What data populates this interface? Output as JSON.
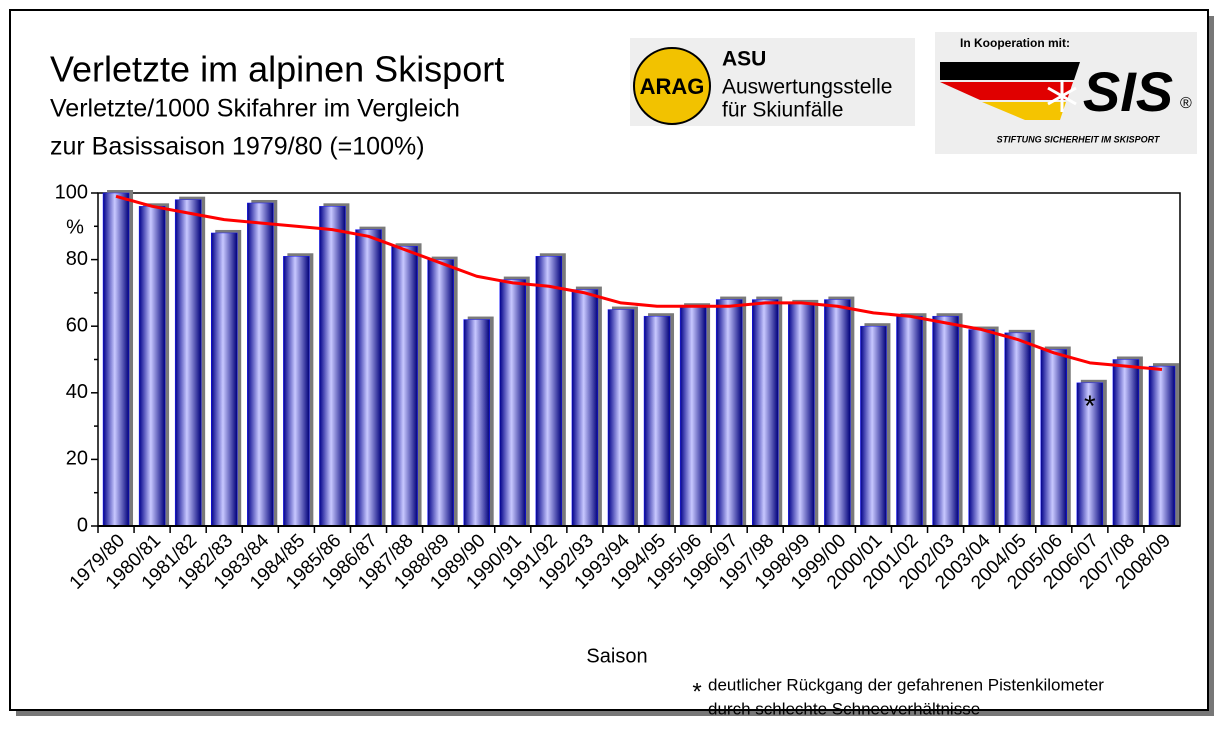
{
  "chart_data": {
    "type": "bar",
    "title": "Verletzte im alpinen Skisport",
    "subtitle": [
      "Verletzte/1000 Skifahrer im Vergleich",
      "zur Basissaison 1979/80 (=100%)"
    ],
    "xlabel": "Saison",
    "ylabel": "%",
    "categories": [
      "1979/80",
      "1980/81",
      "1981/82",
      "1982/83",
      "1983/84",
      "1984/85",
      "1985/86",
      "1986/87",
      "1987/88",
      "1988/89",
      "1989/90",
      "1990/91",
      "1991/92",
      "1992/93",
      "1993/94",
      "1994/95",
      "1995/96",
      "1996/97",
      "1997/98",
      "1998/99",
      "1999/00",
      "2000/01",
      "2001/02",
      "2002/03",
      "2003/04",
      "2004/05",
      "2005/06",
      "2006/07",
      "2007/08",
      "2008/09"
    ],
    "series": [
      {
        "type": "bar",
        "color": "#1a1aff",
        "values": [
          100,
          96,
          98,
          88,
          97,
          81,
          96,
          89,
          84,
          80,
          62,
          74,
          81,
          71,
          65,
          63,
          66,
          68,
          68,
          67,
          68,
          60,
          63,
          63,
          59,
          58,
          53,
          43,
          50,
          48
        ]
      },
      {
        "type": "line",
        "color": "#ff0000",
        "values": [
          99,
          96,
          94,
          92,
          91,
          90,
          89,
          87,
          83,
          79,
          75,
          73,
          72,
          70,
          67,
          66,
          66,
          66,
          67,
          67,
          66,
          64,
          63,
          61,
          59,
          56,
          52,
          49,
          48,
          47
        ]
      }
    ],
    "ylim": [
      0,
      100
    ],
    "yticks": [
      0,
      20,
      40,
      60,
      80,
      100
    ],
    "yminorticks": [
      10,
      30,
      50,
      70,
      90
    ],
    "marker": {
      "category": 27,
      "text": "*"
    },
    "note": {
      "symbol": "*",
      "lines": [
        "deutlicher Rückgang der gefahrenen Pistenkilometer",
        "durch schlechte Schneeverhältnisse"
      ]
    }
  },
  "logos": {
    "arag": "ARAG",
    "asu": "ASU",
    "asu_lines": [
      "Auswertungsstelle",
      "für Skiunfälle"
    ],
    "cooperation": "In Kooperation mit:",
    "sis": "SIS",
    "registered": "®",
    "sis_name": "STIFTUNG SICHERHEIT IM SKISPORT"
  }
}
